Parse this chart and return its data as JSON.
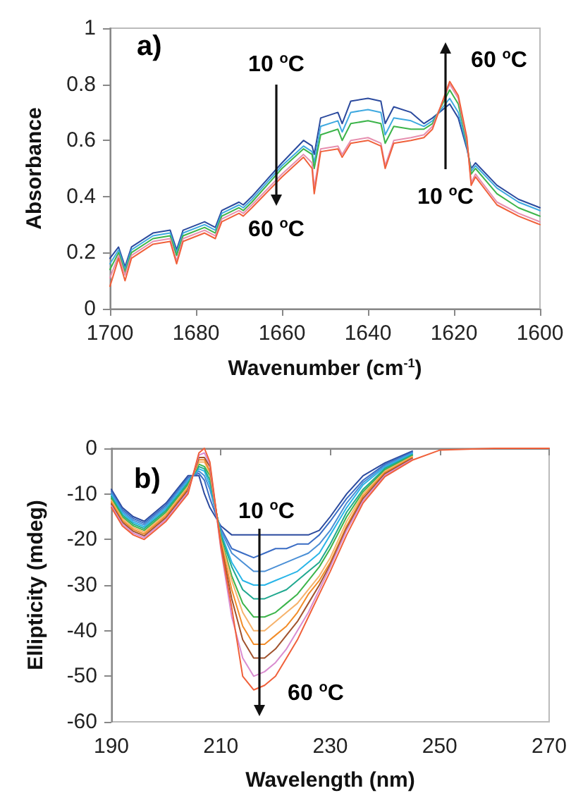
{
  "chart_data": [
    {
      "type": "line",
      "xlabel": "Wavenumber (cm$^{-1}$)",
      "ylabel": "Absorbance",
      "marker": "none",
      "line_style": "solid",
      "xlim": [
        1700,
        1600
      ],
      "xticks": [
        1700,
        1680,
        1660,
        1640,
        1620,
        1600
      ],
      "ylim": [
        0,
        1
      ],
      "yticks": [
        0,
        0.2,
        0.4,
        0.6,
        0.8,
        1
      ],
      "x": [
        1700,
        1698,
        1696.5,
        1695,
        1690,
        1686,
        1684.5,
        1683,
        1678,
        1675.5,
        1674,
        1670,
        1669,
        1667,
        1660,
        1655,
        1653,
        1652.5,
        1651,
        1647,
        1646,
        1644,
        1640,
        1637,
        1636,
        1634,
        1630,
        1627,
        1625,
        1621,
        1619,
        1617,
        1616,
        1615,
        1610,
        1605,
        1600
      ],
      "series": [
        {
          "color": "#2b4a9e",
          "values": [
            0.18,
            0.22,
            0.15,
            0.22,
            0.27,
            0.28,
            0.21,
            0.28,
            0.31,
            0.29,
            0.35,
            0.38,
            0.37,
            0.4,
            0.52,
            0.6,
            0.58,
            0.55,
            0.68,
            0.7,
            0.66,
            0.74,
            0.75,
            0.74,
            0.66,
            0.72,
            0.7,
            0.66,
            0.68,
            0.73,
            0.68,
            0.57,
            0.5,
            0.52,
            0.44,
            0.39,
            0.36
          ]
        },
        {
          "color": "#3fa9e0",
          "values": [
            0.16,
            0.21,
            0.14,
            0.21,
            0.26,
            0.27,
            0.2,
            0.27,
            0.3,
            0.28,
            0.34,
            0.37,
            0.36,
            0.39,
            0.51,
            0.58,
            0.56,
            0.52,
            0.65,
            0.67,
            0.63,
            0.7,
            0.71,
            0.7,
            0.62,
            0.68,
            0.67,
            0.65,
            0.67,
            0.75,
            0.7,
            0.58,
            0.49,
            0.51,
            0.43,
            0.38,
            0.35
          ]
        },
        {
          "color": "#3cb44a",
          "values": [
            0.14,
            0.2,
            0.13,
            0.2,
            0.25,
            0.26,
            0.19,
            0.26,
            0.29,
            0.27,
            0.33,
            0.36,
            0.35,
            0.38,
            0.5,
            0.57,
            0.55,
            0.5,
            0.62,
            0.64,
            0.6,
            0.66,
            0.67,
            0.66,
            0.59,
            0.65,
            0.64,
            0.64,
            0.66,
            0.78,
            0.73,
            0.59,
            0.48,
            0.5,
            0.41,
            0.36,
            0.33
          ]
        },
        {
          "color": "#e68fb0",
          "values": [
            0.11,
            0.19,
            0.12,
            0.19,
            0.24,
            0.25,
            0.17,
            0.25,
            0.28,
            0.26,
            0.32,
            0.35,
            0.34,
            0.37,
            0.48,
            0.55,
            0.52,
            0.43,
            0.57,
            0.58,
            0.55,
            0.6,
            0.61,
            0.59,
            0.51,
            0.6,
            0.61,
            0.62,
            0.65,
            0.8,
            0.75,
            0.6,
            0.45,
            0.48,
            0.38,
            0.34,
            0.31
          ]
        },
        {
          "color": "#f0603a",
          "values": [
            0.08,
            0.18,
            0.1,
            0.18,
            0.23,
            0.24,
            0.16,
            0.24,
            0.27,
            0.25,
            0.31,
            0.34,
            0.33,
            0.36,
            0.47,
            0.54,
            0.5,
            0.41,
            0.56,
            0.57,
            0.54,
            0.59,
            0.6,
            0.58,
            0.5,
            0.59,
            0.6,
            0.61,
            0.64,
            0.81,
            0.76,
            0.61,
            0.44,
            0.47,
            0.37,
            0.33,
            0.3
          ]
        }
      ],
      "annotations": [
        "a)",
        "10 $^{o}$C",
        "60 $^{o}$C",
        "10 $^{o}$C",
        "60 $^{o}$C"
      ]
    },
    {
      "type": "line",
      "xlabel": "Wavelength (nm)",
      "ylabel": "Ellipticity (mdeg)",
      "marker": "none",
      "line_style": "solid",
      "xlim": [
        190,
        270
      ],
      "xticks": [
        190,
        210,
        230,
        250,
        270
      ],
      "ylim": [
        -60,
        0
      ],
      "yticks": [
        -60,
        -50,
        -40,
        -30,
        -20,
        -10,
        0
      ],
      "x": [
        190,
        192,
        194,
        196,
        198,
        200,
        202,
        204,
        206,
        207,
        208,
        210,
        212,
        214,
        216,
        218,
        220,
        222,
        224,
        226,
        228,
        230,
        233,
        236,
        240,
        245,
        250,
        260,
        270
      ],
      "series": [
        {
          "color": "#2b4a9e",
          "values": [
            -9,
            -13,
            -15,
            -16,
            -14,
            -12,
            -9,
            -6,
            -6,
            -10,
            -13,
            -17,
            -19,
            -19,
            -19,
            -19,
            -19,
            -19,
            -19,
            -19,
            -18,
            -15,
            -10,
            -6,
            -3.2,
            -0.6,
            null,
            null,
            null
          ]
        },
        {
          "color": "#3a6cc4",
          "values": [
            -9.4,
            -13.4,
            -15.4,
            -16.4,
            -14.4,
            -12.4,
            -9.4,
            -6.4,
            -5.5,
            -7,
            -11,
            -17.5,
            -22,
            -23,
            -24,
            -23,
            -22,
            -22,
            -21,
            -21,
            -19,
            -16,
            -11,
            -7,
            -3.5,
            -0.8,
            null,
            null,
            null
          ]
        },
        {
          "color": "#4a8fd6",
          "values": [
            -9.8,
            -13.8,
            -15.8,
            -16.8,
            -14.8,
            -12.8,
            -9.8,
            -6.8,
            -5,
            -6,
            -9,
            -18,
            -23,
            -25,
            -27,
            -27,
            -26,
            -25,
            -24,
            -23,
            -21,
            -18,
            -12,
            -7.5,
            -3.8,
            -1,
            null,
            null,
            null
          ]
        },
        {
          "color": "#29b5e8",
          "values": [
            -10.2,
            -14.2,
            -16.2,
            -17.2,
            -15.2,
            -13.2,
            -10.2,
            -7.2,
            -4.5,
            -5,
            -8,
            -18.5,
            -25,
            -29,
            -30,
            -30,
            -29,
            -28,
            -27,
            -25,
            -23,
            -19,
            -13,
            -8,
            -4.1,
            -1.2,
            null,
            null,
            null
          ]
        },
        {
          "color": "#1fa88f",
          "values": [
            -10.6,
            -14.6,
            -16.6,
            -17.6,
            -15.6,
            -13.6,
            -10.6,
            -7.6,
            -4,
            -4.5,
            -7,
            -19,
            -26,
            -31,
            -33,
            -33,
            -32,
            -31,
            -29,
            -27,
            -25,
            -21,
            -14,
            -9,
            -4.4,
            -1.4,
            null,
            null,
            null
          ]
        },
        {
          "color": "#3cb44a",
          "values": [
            -11,
            -15,
            -17,
            -18,
            -16,
            -14,
            -11,
            -8,
            -3.5,
            -4,
            -6,
            -19.5,
            -28,
            -34,
            -37,
            -37,
            -36,
            -34,
            -32,
            -29,
            -26,
            -22,
            -15,
            -9.5,
            -4.7,
            -1.6,
            null,
            null,
            null
          ]
        },
        {
          "color": "#f6b26b",
          "values": [
            -11.4,
            -15.4,
            -17.4,
            -18.4,
            -16.4,
            -14.4,
            -11.4,
            -8.4,
            -3,
            -3,
            -5.5,
            -20,
            -29,
            -36,
            -40,
            -40,
            -38,
            -36,
            -34,
            -31,
            -28,
            -24,
            -16,
            -10,
            -5,
            -1.8,
            null,
            null,
            null
          ]
        },
        {
          "color": "#f28c28",
          "values": [
            -11.8,
            -15.8,
            -17.8,
            -18.8,
            -16.8,
            -14.8,
            -11.8,
            -8.8,
            -2.5,
            -2.5,
            -5,
            -20.5,
            -31,
            -39,
            -43,
            -43,
            -41,
            -39,
            -36,
            -32,
            -29,
            -25,
            -17,
            -10.5,
            -5.3,
            -2,
            null,
            null,
            null
          ]
        },
        {
          "color": "#a0522d",
          "values": [
            -12.2,
            -16.2,
            -18.2,
            -19.2,
            -17.2,
            -15.2,
            -12.2,
            -9.2,
            -2,
            -2,
            -4,
            -21,
            -33,
            -42,
            -46,
            -46,
            -44,
            -41,
            -38,
            -34,
            -30,
            -25.5,
            -17.5,
            -11,
            -5.6,
            -2.2,
            null,
            null,
            null
          ]
        },
        {
          "color": "#d98cd0",
          "values": [
            -12.6,
            -16.6,
            -18.6,
            -19.6,
            -17.6,
            -15.6,
            -12.6,
            -9.6,
            -1.5,
            -1,
            -3.5,
            -22,
            -37,
            -46,
            -50,
            -49,
            -47,
            -44,
            -40,
            -36,
            -31,
            -26,
            -18,
            -11.5,
            -5.9,
            -2.4,
            null,
            null,
            null
          ]
        },
        {
          "color": "#f0603a",
          "values": [
            -13,
            -17,
            -19,
            -20,
            -18,
            -16,
            -13,
            -10,
            -1,
            0,
            -3,
            -21.5,
            -35,
            -50,
            -53,
            -52,
            -50,
            -46,
            -42,
            -37,
            -32,
            -27,
            -19,
            -12,
            -6.2,
            -2.6,
            -0.4,
            0,
            0
          ]
        }
      ],
      "annotations": [
        "b)",
        "10 $^{o}$C",
        "60 $^{o}$C"
      ]
    }
  ]
}
